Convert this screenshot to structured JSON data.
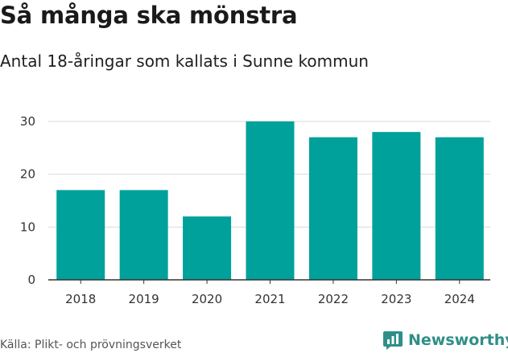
{
  "title": "Så många ska mönstra",
  "subtitle": "Antal 18-åringar som kallats i Sunne kommun",
  "source": "Källa: Plikt- och prövningsverket",
  "brand": {
    "name": "Newsworthy",
    "icon": "bar-chart-speech-bubble-icon",
    "color": "#2f8f88"
  },
  "colors": {
    "bar": "#00a19a",
    "grid": "#d9d9d9",
    "axis": "#333333"
  },
  "chart_data": {
    "type": "bar",
    "categories": [
      "2018",
      "2019",
      "2020",
      "2021",
      "2022",
      "2023",
      "2024"
    ],
    "values": [
      17,
      17,
      12,
      30,
      27,
      28,
      27
    ],
    "ylim": [
      0,
      30
    ],
    "yticks": [
      0,
      10,
      20,
      30
    ],
    "grid": true,
    "xlabel": "",
    "ylabel": ""
  }
}
